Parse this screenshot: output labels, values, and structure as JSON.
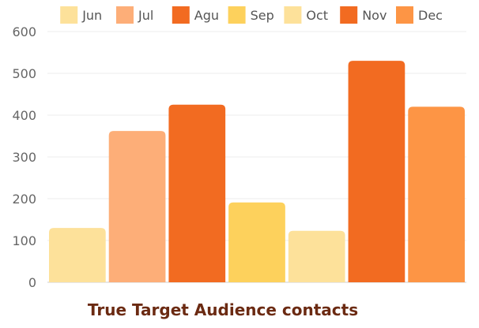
{
  "chart_data": {
    "type": "bar",
    "title": "True Target Audience contacts",
    "xlabel": "",
    "ylabel": "",
    "ylim": [
      0,
      600
    ],
    "yticks": [
      0,
      100,
      200,
      300,
      400,
      500,
      600
    ],
    "grid": true,
    "legend_position": "top",
    "series": [
      {
        "name": "Jun",
        "value": 130,
        "color": "#fde19a"
      },
      {
        "name": "Jul",
        "value": 362,
        "color": "#fdae78"
      },
      {
        "name": "Agu",
        "value": 425,
        "color": "#f26b21"
      },
      {
        "name": "Sep",
        "value": 191,
        "color": "#fdd15c"
      },
      {
        "name": "Oct",
        "value": 123,
        "color": "#fde19a"
      },
      {
        "name": "Nov",
        "value": 530,
        "color": "#f26b21"
      },
      {
        "name": "Dec",
        "value": 420,
        "color": "#fd9545"
      }
    ]
  }
}
